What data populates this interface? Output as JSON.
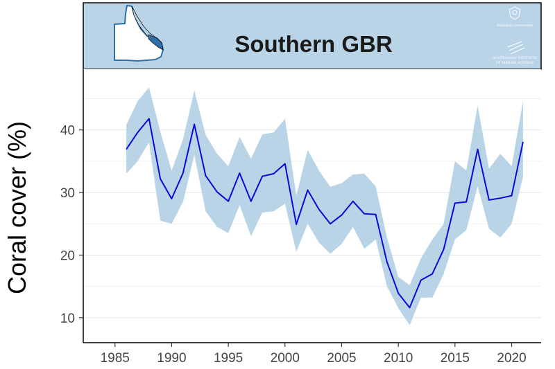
{
  "chart_data": {
    "type": "line",
    "title": "Southern GBR",
    "ylabel": "Coral cover (%)",
    "xlabel": "",
    "xlim": [
      1982.2,
      2022.6
    ],
    "ylim": [
      6.0,
      49.7
    ],
    "x_ticks": [
      1985,
      1990,
      1995,
      2000,
      2005,
      2010,
      2015,
      2020
    ],
    "y_ticks": [
      10,
      20,
      30,
      40
    ],
    "grid": "horizontal",
    "x": [
      1986,
      1987,
      1988,
      1989,
      1990,
      1991,
      1992,
      1993,
      1994,
      1995,
      1996,
      1997,
      1998,
      1999,
      2000,
      2001,
      2002,
      2003,
      2004,
      2005,
      2006,
      2007,
      2008,
      2009,
      2010,
      2011,
      2012,
      2013,
      2014,
      2015,
      2016,
      2017,
      2018,
      2019,
      2020,
      2021
    ],
    "series": [
      {
        "values": [
          36.9,
          39.6,
          41.8,
          32.2,
          29.0,
          33.1,
          40.9,
          32.7,
          30.1,
          28.6,
          33.1,
          28.6,
          32.6,
          33.0,
          34.6,
          24.9,
          30.4,
          27.3,
          25.0,
          26.4,
          28.6,
          26.6,
          26.5,
          18.9,
          13.9,
          11.6,
          16.0,
          17.0,
          20.9,
          28.3,
          28.5,
          36.9,
          28.8,
          29.1,
          29.5,
          38.1
        ],
        "lower": [
          33.0,
          35.0,
          38.0,
          25.5,
          25.0,
          28.5,
          36.0,
          27.0,
          24.5,
          23.5,
          28.0,
          23.0,
          26.8,
          27.0,
          28.2,
          20.5,
          25.0,
          22.0,
          20.2,
          21.8,
          24.5,
          21.0,
          22.5,
          15.0,
          11.5,
          8.8,
          13.2,
          13.2,
          17.0,
          22.5,
          24.0,
          31.0,
          24.2,
          22.8,
          25.0,
          32.5
        ],
        "upper": [
          40.8,
          44.6,
          46.8,
          39.7,
          33.5,
          38.5,
          46.3,
          39.2,
          36.2,
          34.2,
          38.9,
          35.4,
          39.3,
          39.6,
          41.8,
          29.5,
          36.8,
          33.5,
          30.9,
          31.5,
          32.9,
          33.0,
          31.0,
          22.8,
          16.5,
          15.2,
          19.5,
          22.5,
          25.0,
          35.0,
          33.5,
          43.9,
          33.8,
          36.2,
          34.2,
          44.6
        ]
      }
    ],
    "colors": {
      "line": "#0a0ad6",
      "ribbon": "#b9d4e6",
      "header_bg": "#b9d4e6",
      "map_fill": "#2e6faa",
      "map_outline": "#2f6fab"
    }
  },
  "header": {
    "logo_gov_text": "Australian Government",
    "logo_aims_line1": "AUSTRALIAN INSTITUTE",
    "logo_aims_line2": "OF MARINE SCIENCE"
  }
}
